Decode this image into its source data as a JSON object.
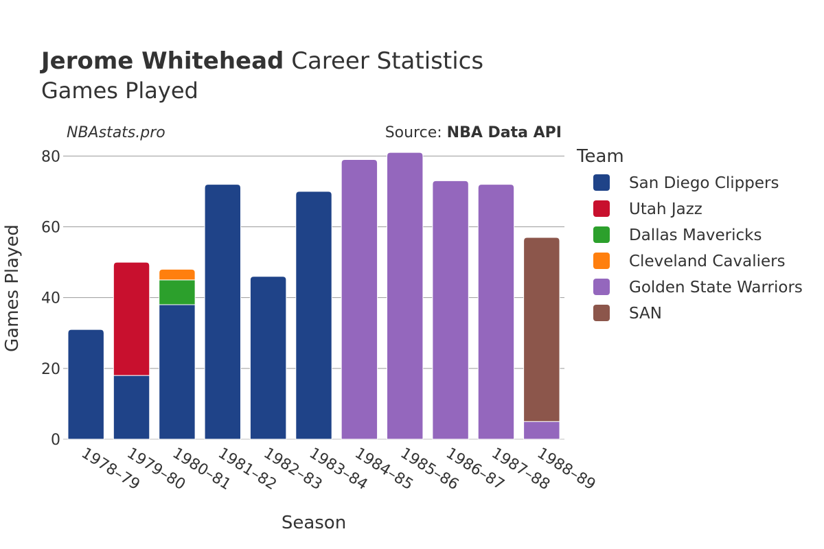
{
  "header": {
    "title_name": "Jerome Whitehead",
    "title_rest": " Career Statistics",
    "subtitle": "Games Played",
    "watermark": "NBAstats.pro",
    "source_prefix": "Source: ",
    "source_name": "NBA Data API"
  },
  "chart_data": {
    "type": "bar",
    "stacked": true,
    "xlabel": "Season",
    "ylabel": "Games Played",
    "ylim": [
      0,
      82
    ],
    "yticks": [
      0,
      20,
      40,
      60,
      80
    ],
    "grid": true,
    "legend_title": "Team",
    "legend_position": "right",
    "categories": [
      "1978–79",
      "1979–80",
      "1980–81",
      "1981–82",
      "1982–83",
      "1983–84",
      "1984–85",
      "1985–86",
      "1986–87",
      "1987–88",
      "1988–89"
    ],
    "series": [
      {
        "name": "San Diego Clippers",
        "color": "#1f4388",
        "values": [
          31,
          18,
          38,
          72,
          46,
          70,
          0,
          0,
          0,
          0,
          0
        ]
      },
      {
        "name": "Utah Jazz",
        "color": "#c8102e",
        "values": [
          0,
          32,
          0,
          0,
          0,
          0,
          0,
          0,
          0,
          0,
          0
        ]
      },
      {
        "name": "Dallas Mavericks",
        "color": "#2ca02c",
        "values": [
          0,
          0,
          7,
          0,
          0,
          0,
          0,
          0,
          0,
          0,
          0
        ]
      },
      {
        "name": "Cleveland Cavaliers",
        "color": "#ff7f0e",
        "values": [
          0,
          0,
          3,
          0,
          0,
          0,
          0,
          0,
          0,
          0,
          0
        ]
      },
      {
        "name": "Golden State Warriors",
        "color": "#9467bd",
        "values": [
          0,
          0,
          0,
          0,
          0,
          0,
          79,
          81,
          73,
          72,
          5
        ]
      },
      {
        "name": "SAN",
        "color": "#8c564b",
        "values": [
          0,
          0,
          0,
          0,
          0,
          0,
          0,
          0,
          0,
          0,
          52
        ]
      }
    ]
  }
}
